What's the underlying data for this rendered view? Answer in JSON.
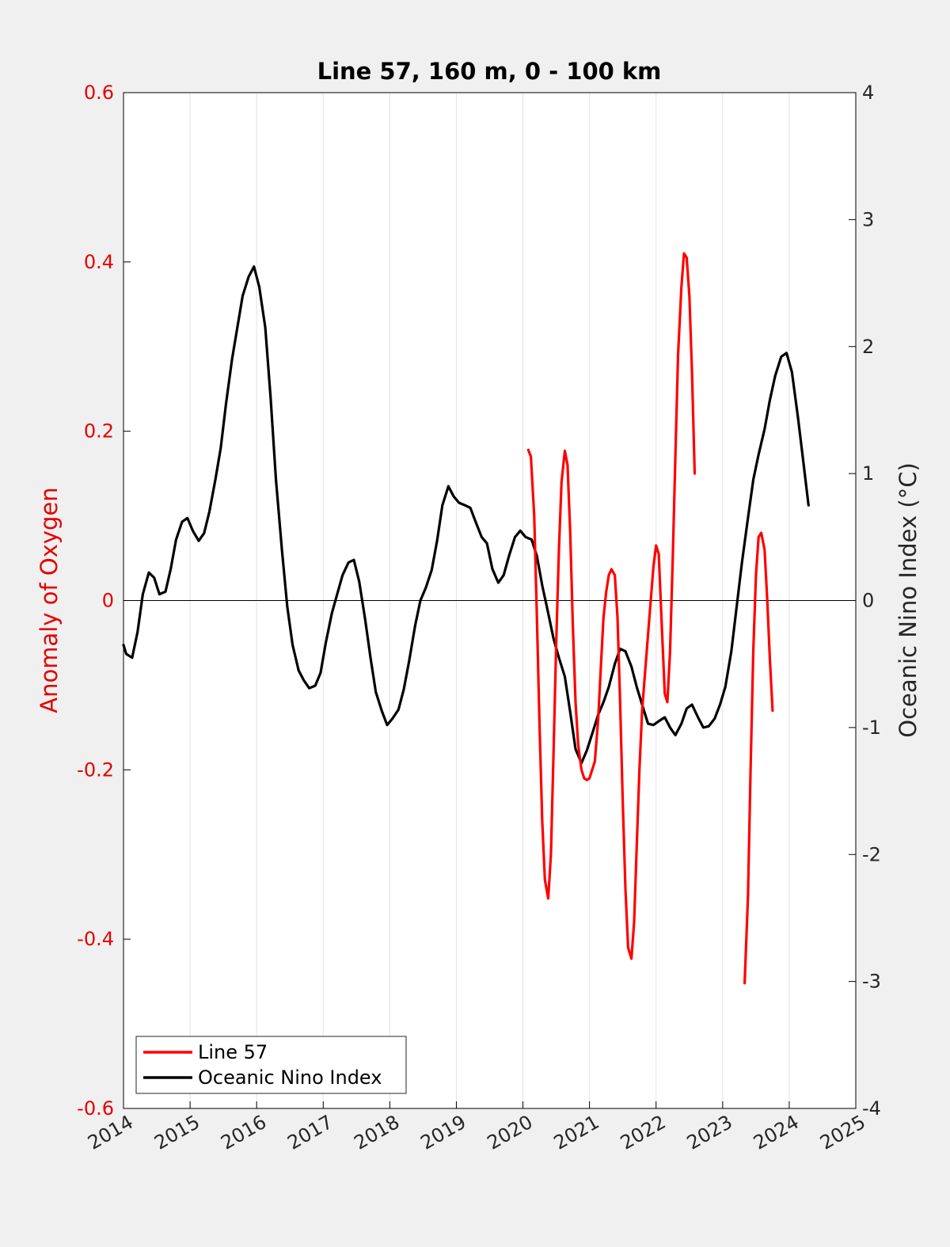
{
  "chart_data": {
    "type": "line",
    "title": "Line 57, 160 m, 0 - 100 km",
    "xlabel": "",
    "ylabel_left": "Anomaly of Oxygen",
    "ylabel_right": "Oceanic Nino Index (°C)",
    "xlim": [
      2014,
      2025
    ],
    "ylim_left": [
      -0.6,
      0.6
    ],
    "ylim_right": [
      -4,
      4
    ],
    "x_ticks": [
      "2014",
      "2015",
      "2016",
      "2017",
      "2018",
      "2019",
      "2020",
      "2021",
      "2022",
      "2023",
      "2024",
      "2025"
    ],
    "y_ticks_left": [
      "0.6",
      "0.4",
      "0.2",
      "0",
      "-0.2",
      "-0.4",
      "-0.6"
    ],
    "y_ticks_right": [
      "4",
      "3",
      "2",
      "1",
      "0",
      "-1",
      "-2",
      "-3",
      "-4"
    ],
    "grid": "vertical",
    "zero_line": true,
    "legend_position": "bottom-left",
    "colors": {
      "left_axis": "#e60000",
      "line57": "#ff0000",
      "oni": "#000000",
      "plot_bg": "#ffffff",
      "figure_bg": "#f0f0f0"
    },
    "series": [
      {
        "name": "Line 57",
        "axis": "left",
        "color": "#ff0000",
        "segments": [
          [
            [
              2020.08,
              0.178
            ],
            [
              2020.12,
              0.17
            ],
            [
              2020.17,
              0.1
            ],
            [
              2020.21,
              -0.02
            ],
            [
              2020.25,
              -0.15
            ],
            [
              2020.29,
              -0.26
            ],
            [
              2020.33,
              -0.33
            ],
            [
              2020.38,
              -0.352
            ],
            [
              2020.42,
              -0.3
            ],
            [
              2020.46,
              -0.18
            ],
            [
              2020.5,
              -0.05
            ],
            [
              2020.54,
              0.06
            ],
            [
              2020.58,
              0.14
            ],
            [
              2020.63,
              0.177
            ],
            [
              2020.67,
              0.16
            ],
            [
              2020.71,
              0.08
            ],
            [
              2020.75,
              -0.03
            ],
            [
              2020.79,
              -0.12
            ],
            [
              2020.83,
              -0.17
            ],
            [
              2020.88,
              -0.2
            ],
            [
              2020.92,
              -0.21
            ],
            [
              2020.96,
              -0.212
            ],
            [
              2021.0,
              -0.21
            ],
            [
              2021.04,
              -0.2
            ],
            [
              2021.08,
              -0.19
            ],
            [
              2021.13,
              -0.14
            ],
            [
              2021.17,
              -0.08
            ],
            [
              2021.21,
              -0.02
            ],
            [
              2021.25,
              0.01
            ],
            [
              2021.29,
              0.03
            ],
            [
              2021.33,
              0.037
            ],
            [
              2021.38,
              0.03
            ],
            [
              2021.42,
              -0.02
            ],
            [
              2021.46,
              -0.12
            ],
            [
              2021.5,
              -0.24
            ],
            [
              2021.54,
              -0.34
            ],
            [
              2021.58,
              -0.41
            ],
            [
              2021.63,
              -0.423
            ],
            [
              2021.67,
              -0.38
            ],
            [
              2021.71,
              -0.29
            ],
            [
              2021.75,
              -0.2
            ],
            [
              2021.79,
              -0.13
            ],
            [
              2021.83,
              -0.09
            ],
            [
              2021.88,
              -0.04
            ],
            [
              2021.92,
              0.0
            ],
            [
              2021.96,
              0.04
            ],
            [
              2022.0,
              0.065
            ],
            [
              2022.04,
              0.055
            ],
            [
              2022.08,
              -0.02
            ],
            [
              2022.13,
              -0.11
            ],
            [
              2022.17,
              -0.12
            ],
            [
              2022.21,
              -0.06
            ],
            [
              2022.25,
              0.05
            ],
            [
              2022.29,
              0.17
            ],
            [
              2022.33,
              0.29
            ],
            [
              2022.38,
              0.37
            ],
            [
              2022.42,
              0.41
            ],
            [
              2022.46,
              0.405
            ],
            [
              2022.5,
              0.36
            ],
            [
              2022.54,
              0.27
            ],
            [
              2022.58,
              0.15
            ]
          ],
          [
            [
              2023.33,
              -0.452
            ],
            [
              2023.38,
              -0.35
            ],
            [
              2023.42,
              -0.2
            ],
            [
              2023.46,
              -0.06
            ],
            [
              2023.5,
              0.03
            ],
            [
              2023.54,
              0.075
            ],
            [
              2023.58,
              0.08
            ],
            [
              2023.63,
              0.06
            ],
            [
              2023.67,
              0.0
            ],
            [
              2023.71,
              -0.07
            ],
            [
              2023.75,
              -0.13
            ]
          ]
        ]
      },
      {
        "name": "Oceanic Nino Index",
        "axis": "right",
        "color": "#000000",
        "points": [
          [
            2014.0,
            -0.35
          ],
          [
            2014.04,
            -0.42
          ],
          [
            2014.13,
            -0.45
          ],
          [
            2014.21,
            -0.25
          ],
          [
            2014.29,
            0.05
          ],
          [
            2014.38,
            0.22
          ],
          [
            2014.46,
            0.18
          ],
          [
            2014.54,
            0.05
          ],
          [
            2014.63,
            0.07
          ],
          [
            2014.71,
            0.25
          ],
          [
            2014.79,
            0.48
          ],
          [
            2014.88,
            0.62
          ],
          [
            2014.96,
            0.65
          ],
          [
            2015.04,
            0.55
          ],
          [
            2015.13,
            0.47
          ],
          [
            2015.21,
            0.53
          ],
          [
            2015.29,
            0.7
          ],
          [
            2015.38,
            0.95
          ],
          [
            2015.46,
            1.2
          ],
          [
            2015.54,
            1.55
          ],
          [
            2015.63,
            1.9
          ],
          [
            2015.71,
            2.15
          ],
          [
            2015.79,
            2.4
          ],
          [
            2015.88,
            2.55
          ],
          [
            2015.96,
            2.63
          ],
          [
            2016.04,
            2.47
          ],
          [
            2016.13,
            2.15
          ],
          [
            2016.21,
            1.6
          ],
          [
            2016.29,
            0.95
          ],
          [
            2016.38,
            0.4
          ],
          [
            2016.46,
            -0.05
          ],
          [
            2016.54,
            -0.35
          ],
          [
            2016.63,
            -0.55
          ],
          [
            2016.71,
            -0.63
          ],
          [
            2016.79,
            -0.69
          ],
          [
            2016.88,
            -0.67
          ],
          [
            2016.96,
            -0.57
          ],
          [
            2017.04,
            -0.33
          ],
          [
            2017.13,
            -0.1
          ],
          [
            2017.21,
            0.05
          ],
          [
            2017.29,
            0.2
          ],
          [
            2017.38,
            0.3
          ],
          [
            2017.46,
            0.32
          ],
          [
            2017.54,
            0.15
          ],
          [
            2017.63,
            -0.15
          ],
          [
            2017.71,
            -0.45
          ],
          [
            2017.79,
            -0.72
          ],
          [
            2017.88,
            -0.87
          ],
          [
            2017.96,
            -0.98
          ],
          [
            2018.04,
            -0.93
          ],
          [
            2018.13,
            -0.86
          ],
          [
            2018.21,
            -0.7
          ],
          [
            2018.29,
            -0.48
          ],
          [
            2018.38,
            -0.2
          ],
          [
            2018.46,
            0.0
          ],
          [
            2018.54,
            0.1
          ],
          [
            2018.63,
            0.24
          ],
          [
            2018.71,
            0.47
          ],
          [
            2018.79,
            0.75
          ],
          [
            2018.88,
            0.9
          ],
          [
            2018.96,
            0.82
          ],
          [
            2019.04,
            0.77
          ],
          [
            2019.13,
            0.75
          ],
          [
            2019.21,
            0.73
          ],
          [
            2019.29,
            0.62
          ],
          [
            2019.38,
            0.5
          ],
          [
            2019.46,
            0.45
          ],
          [
            2019.54,
            0.25
          ],
          [
            2019.63,
            0.14
          ],
          [
            2019.71,
            0.2
          ],
          [
            2019.79,
            0.35
          ],
          [
            2019.88,
            0.5
          ],
          [
            2019.96,
            0.55
          ],
          [
            2020.04,
            0.5
          ],
          [
            2020.13,
            0.48
          ],
          [
            2020.21,
            0.35
          ],
          [
            2020.29,
            0.12
          ],
          [
            2020.38,
            -0.1
          ],
          [
            2020.46,
            -0.3
          ],
          [
            2020.54,
            -0.45
          ],
          [
            2020.63,
            -0.6
          ],
          [
            2020.71,
            -0.88
          ],
          [
            2020.79,
            -1.17
          ],
          [
            2020.88,
            -1.28
          ],
          [
            2020.96,
            -1.18
          ],
          [
            2021.04,
            -1.05
          ],
          [
            2021.13,
            -0.9
          ],
          [
            2021.21,
            -0.8
          ],
          [
            2021.29,
            -0.68
          ],
          [
            2021.38,
            -0.5
          ],
          [
            2021.46,
            -0.38
          ],
          [
            2021.54,
            -0.4
          ],
          [
            2021.63,
            -0.52
          ],
          [
            2021.71,
            -0.68
          ],
          [
            2021.79,
            -0.82
          ],
          [
            2021.88,
            -0.97
          ],
          [
            2021.96,
            -0.98
          ],
          [
            2022.04,
            -0.95
          ],
          [
            2022.13,
            -0.92
          ],
          [
            2022.21,
            -1.0
          ],
          [
            2022.29,
            -1.06
          ],
          [
            2022.38,
            -0.97
          ],
          [
            2022.46,
            -0.85
          ],
          [
            2022.54,
            -0.82
          ],
          [
            2022.63,
            -0.92
          ],
          [
            2022.71,
            -1.0
          ],
          [
            2022.79,
            -0.99
          ],
          [
            2022.88,
            -0.93
          ],
          [
            2022.96,
            -0.82
          ],
          [
            2023.04,
            -0.68
          ],
          [
            2023.13,
            -0.4
          ],
          [
            2023.21,
            -0.05
          ],
          [
            2023.29,
            0.3
          ],
          [
            2023.38,
            0.65
          ],
          [
            2023.46,
            0.95
          ],
          [
            2023.54,
            1.15
          ],
          [
            2023.63,
            1.35
          ],
          [
            2023.71,
            1.58
          ],
          [
            2023.79,
            1.77
          ],
          [
            2023.88,
            1.92
          ],
          [
            2023.96,
            1.95
          ],
          [
            2024.04,
            1.8
          ],
          [
            2024.13,
            1.45
          ],
          [
            2024.21,
            1.1
          ],
          [
            2024.29,
            0.75
          ]
        ]
      }
    ]
  }
}
